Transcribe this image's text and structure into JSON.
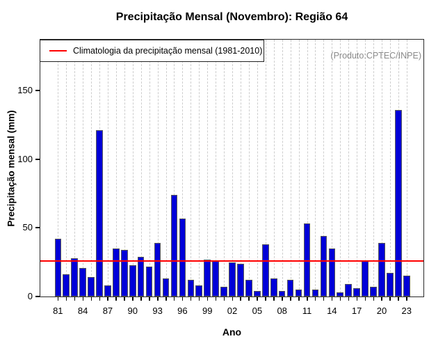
{
  "chart_data": {
    "type": "bar",
    "title": "Precipitação Mensal (Novembro): Região 64",
    "xlabel": "Ano",
    "ylabel": "Precipitação mensal (mm)",
    "legend": "Climatologia da precipitação mensal (1981-2010)",
    "watermark": "(Produto:CPTEC/INPE)",
    "years": [
      1981,
      1982,
      1983,
      1984,
      1985,
      1986,
      1987,
      1988,
      1989,
      1990,
      1991,
      1992,
      1993,
      1994,
      1995,
      1996,
      1997,
      1998,
      1999,
      2000,
      2001,
      2002,
      2003,
      2004,
      2005,
      2006,
      2007,
      2008,
      2009,
      2010,
      2011,
      2012,
      2013,
      2014,
      2015,
      2016,
      2017,
      2018,
      2019,
      2020,
      2021,
      2022,
      2023
    ],
    "x_tick_labels": [
      "81",
      "84",
      "87",
      "90",
      "93",
      "96",
      "99",
      "02",
      "05",
      "08",
      "11",
      "14",
      "17",
      "20",
      "23"
    ],
    "values": [
      42,
      16,
      28,
      21,
      14,
      121,
      8,
      35,
      34,
      23,
      29,
      22,
      39,
      13,
      74,
      57,
      12,
      8,
      27,
      26,
      7,
      25,
      24,
      12,
      4,
      38,
      13,
      4,
      12,
      5,
      53,
      5,
      44,
      35,
      3,
      9,
      6,
      26,
      7,
      39,
      17,
      136,
      15
    ],
    "climatology": 26,
    "y_ticks": [
      0,
      50,
      100,
      150
    ],
    "ylim": [
      0,
      187
    ],
    "grid": "vertical-dashed",
    "legend_position": "top-left",
    "bar_color": "#0000D8",
    "bar_border_color": "#595959",
    "line_color": "#FF0000"
  }
}
